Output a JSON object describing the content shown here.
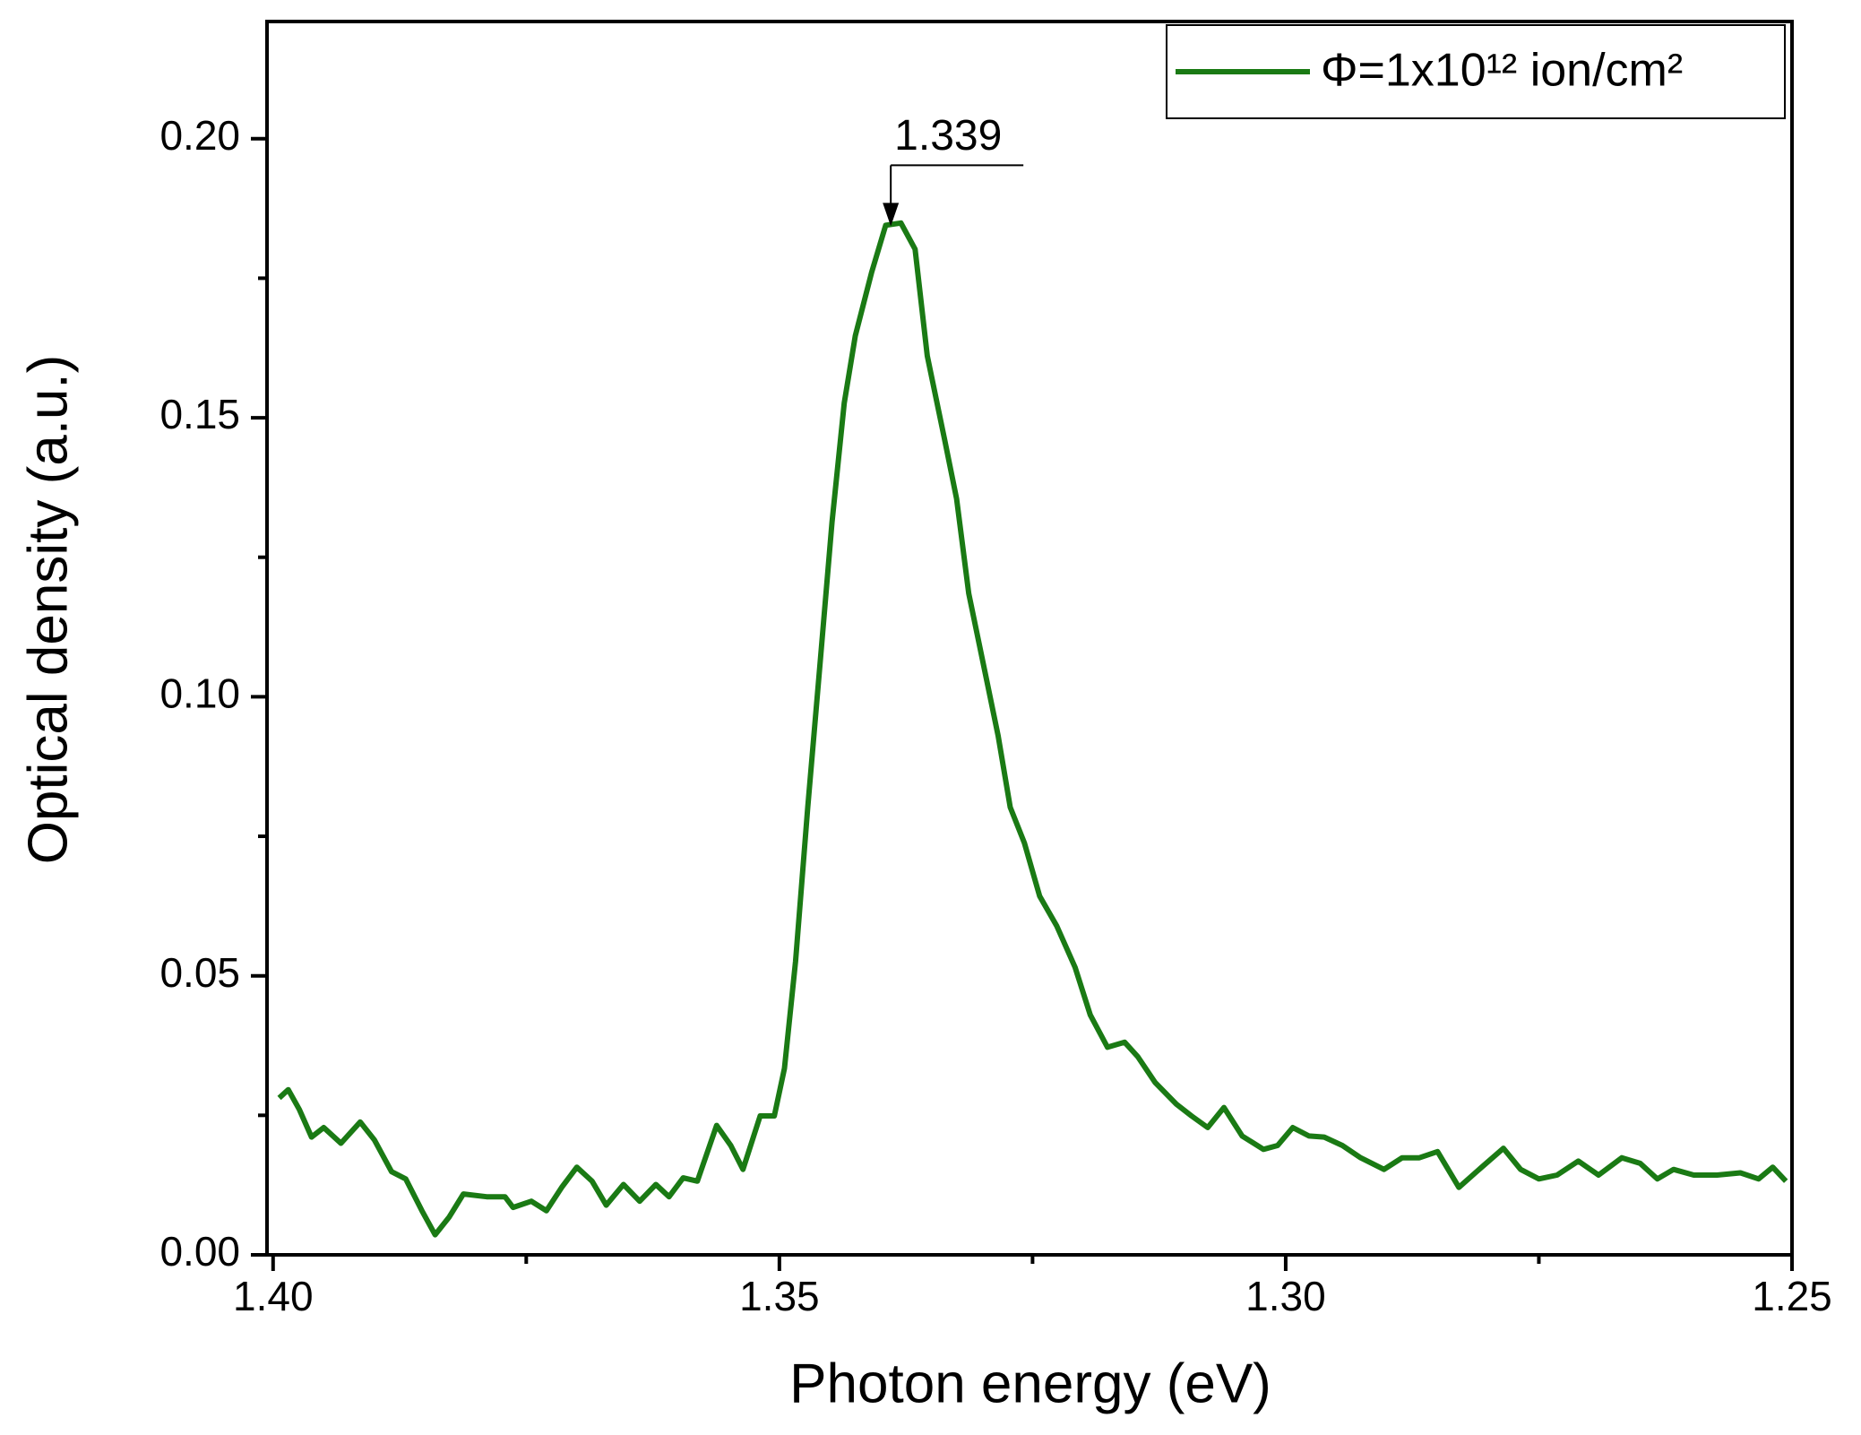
{
  "chart_data": {
    "type": "line",
    "xlabel": "Photon energy (eV)",
    "ylabel": "Optical density (a.u.)",
    "xlim": [
      1.4006,
      1.25
    ],
    "ylim": [
      0,
      0.221
    ],
    "xticks": [
      {
        "value": 1.4,
        "label": "1.40"
      },
      1.35,
      {
        "value": 1.3,
        "label": "1.30"
      },
      1.25
    ],
    "xminorticks": [
      1.375,
      1.325,
      1.275
    ],
    "yticks": [
      {
        "value": 0,
        "label": "0.00"
      },
      {
        "value": 0.05,
        "label": "0.05"
      },
      {
        "value": 0.1,
        "label": "0.10"
      },
      {
        "value": 0.15,
        "label": "0.15"
      },
      {
        "value": 0.2,
        "label": "0.20"
      }
    ],
    "yminorticks": [
      0.025,
      0.075,
      0.125,
      0.175
    ],
    "legend": "upper right",
    "annotations": [
      {
        "text": "1.339",
        "x": 1.339,
        "y": 0.184
      }
    ],
    "x": [
      1.3994,
      1.3985,
      1.3974,
      1.3962,
      1.395,
      1.3933,
      1.3914,
      1.39,
      1.3883,
      1.3869,
      1.3853,
      1.384,
      1.3826,
      1.3812,
      1.3789,
      1.3771,
      1.3763,
      1.3745,
      1.373,
      1.3715,
      1.37,
      1.3685,
      1.3671,
      1.3654,
      1.3638,
      1.3622,
      1.3609,
      1.3595,
      1.3581,
      1.3562,
      1.3548,
      1.3536,
      1.3519,
      1.3505,
      1.3495,
      1.3484,
      1.3472,
      1.346,
      1.3448,
      1.3436,
      1.3425,
      1.3409,
      1.3395,
      1.338,
      1.3366,
      1.3354,
      1.3337,
      1.3325,
      1.3313,
      1.3296,
      1.3284,
      1.3272,
      1.3258,
      1.3243,
      1.3226,
      1.3208,
      1.3193,
      1.3176,
      1.3159,
      1.3146,
      1.3129,
      1.3108,
      1.3093,
      1.3077,
      1.3061,
      1.3043,
      1.3022,
      1.3008,
      1.2993,
      1.2977,
      1.2962,
      1.2944,
      1.2926,
      1.2903,
      1.2885,
      1.2868,
      1.285,
      1.2829,
      1.2809,
      1.2785,
      1.2768,
      1.275,
      1.2732,
      1.2711,
      1.2691,
      1.2668,
      1.265,
      1.2633,
      1.2617,
      1.2597,
      1.2574,
      1.2551,
      1.2533,
      1.2519,
      1.2506
    ],
    "series": [
      {
        "name": "Φ=1x10¹² ion/cm²",
        "color": "#1a7a14",
        "values": [
          0.0281,
          0.0296,
          0.026,
          0.0211,
          0.0228,
          0.02,
          0.0238,
          0.0206,
          0.0149,
          0.0136,
          0.0079,
          0.0036,
          0.0068,
          0.0109,
          0.0104,
          0.0104,
          0.0085,
          0.0096,
          0.0079,
          0.0121,
          0.0157,
          0.0132,
          0.0089,
          0.0126,
          0.0096,
          0.0126,
          0.0104,
          0.0138,
          0.0132,
          0.0232,
          0.0196,
          0.0153,
          0.0249,
          0.0249,
          0.0334,
          0.0526,
          0.0802,
          0.1057,
          0.1313,
          0.1526,
          0.1647,
          0.176,
          0.1845,
          0.1849,
          0.1802,
          0.1611,
          0.1462,
          0.1355,
          0.1185,
          0.1036,
          0.093,
          0.0802,
          0.0738,
          0.0643,
          0.0589,
          0.0515,
          0.043,
          0.0372,
          0.0381,
          0.0355,
          0.0309,
          0.027,
          0.0249,
          0.0228,
          0.0264,
          0.0213,
          0.0189,
          0.0196,
          0.0228,
          0.0213,
          0.0211,
          0.0196,
          0.0174,
          0.0153,
          0.0174,
          0.0174,
          0.0185,
          0.0121,
          0.0153,
          0.0191,
          0.0153,
          0.0136,
          0.0143,
          0.0168,
          0.0143,
          0.0174,
          0.0164,
          0.0136,
          0.0153,
          0.0143,
          0.0143,
          0.0147,
          0.0136,
          0.0157,
          0.0132
        ]
      }
    ]
  }
}
